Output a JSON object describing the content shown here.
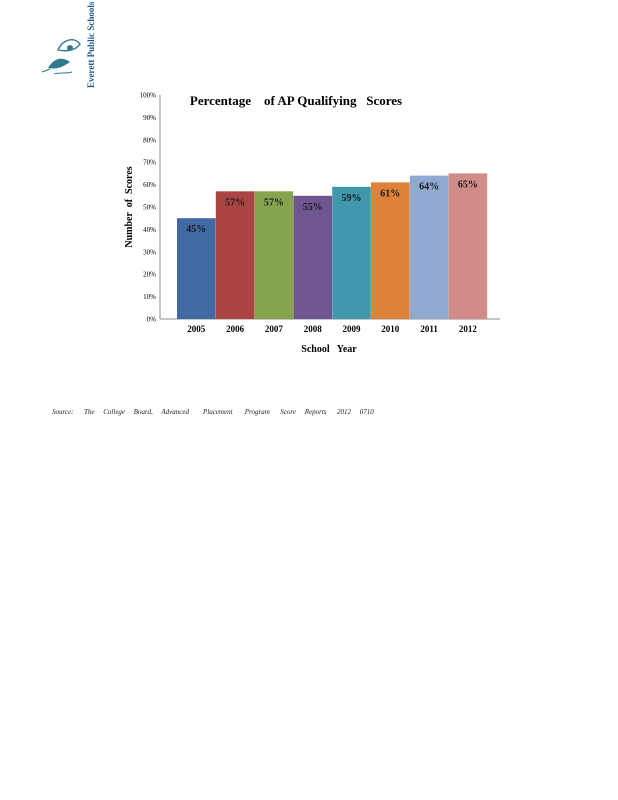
{
  "logo": {
    "text": "Everett Public Schools"
  },
  "chart_data": {
    "type": "bar",
    "title": "Percentage    of AP Qualifying   Scores",
    "xlabel": "School   Year",
    "ylabel": "Number  of  Scores",
    "categories": [
      "2005",
      "2006",
      "2007",
      "2008",
      "2009",
      "2010",
      "2011",
      "2012"
    ],
    "values": [
      45,
      57,
      57,
      55,
      59,
      61,
      64,
      65
    ],
    "data_labels": [
      "45%",
      "57%",
      "57%",
      "55%",
      "59%",
      "61%",
      "64%",
      "65%"
    ],
    "y_ticks": [
      "0%",
      "10%",
      "20%",
      "30%",
      "40%",
      "50%",
      "60%",
      "70%",
      "80%",
      "90%",
      "100%"
    ],
    "ylim": [
      0,
      100
    ],
    "grid": false,
    "legend": "none",
    "colors": [
      "#4169a5",
      "#a94442",
      "#86a44b",
      "#705690",
      "#3f98ae",
      "#de823b",
      "#90a9d0",
      "#d18b88"
    ]
  },
  "source": "Source:      The     College     Board,     Advanced        Placement       Program      Score     Reports      2012     0710"
}
